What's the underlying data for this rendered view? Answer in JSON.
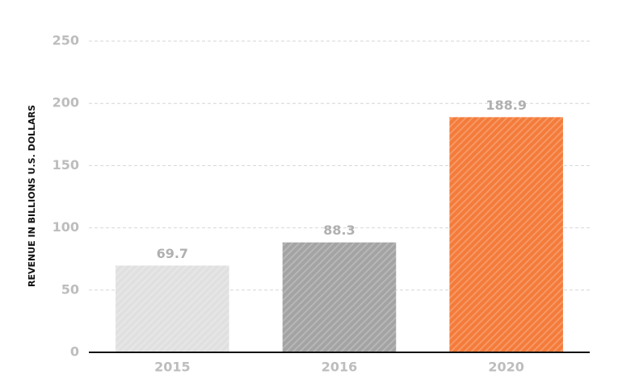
{
  "chart_data": {
    "type": "bar",
    "y_label": "REVENUE IN BILLIONS U.S. DOLLARS",
    "categories": [
      "2015",
      "2016",
      "2020"
    ],
    "values": [
      69.7,
      88.3,
      188.9
    ],
    "colors": [
      "#e0e0e0",
      "#a3a3a3",
      "#f47b3a"
    ],
    "ylim": [
      0,
      250
    ],
    "yticks": [
      0,
      50,
      100,
      150,
      200,
      250
    ],
    "grid": true
  }
}
